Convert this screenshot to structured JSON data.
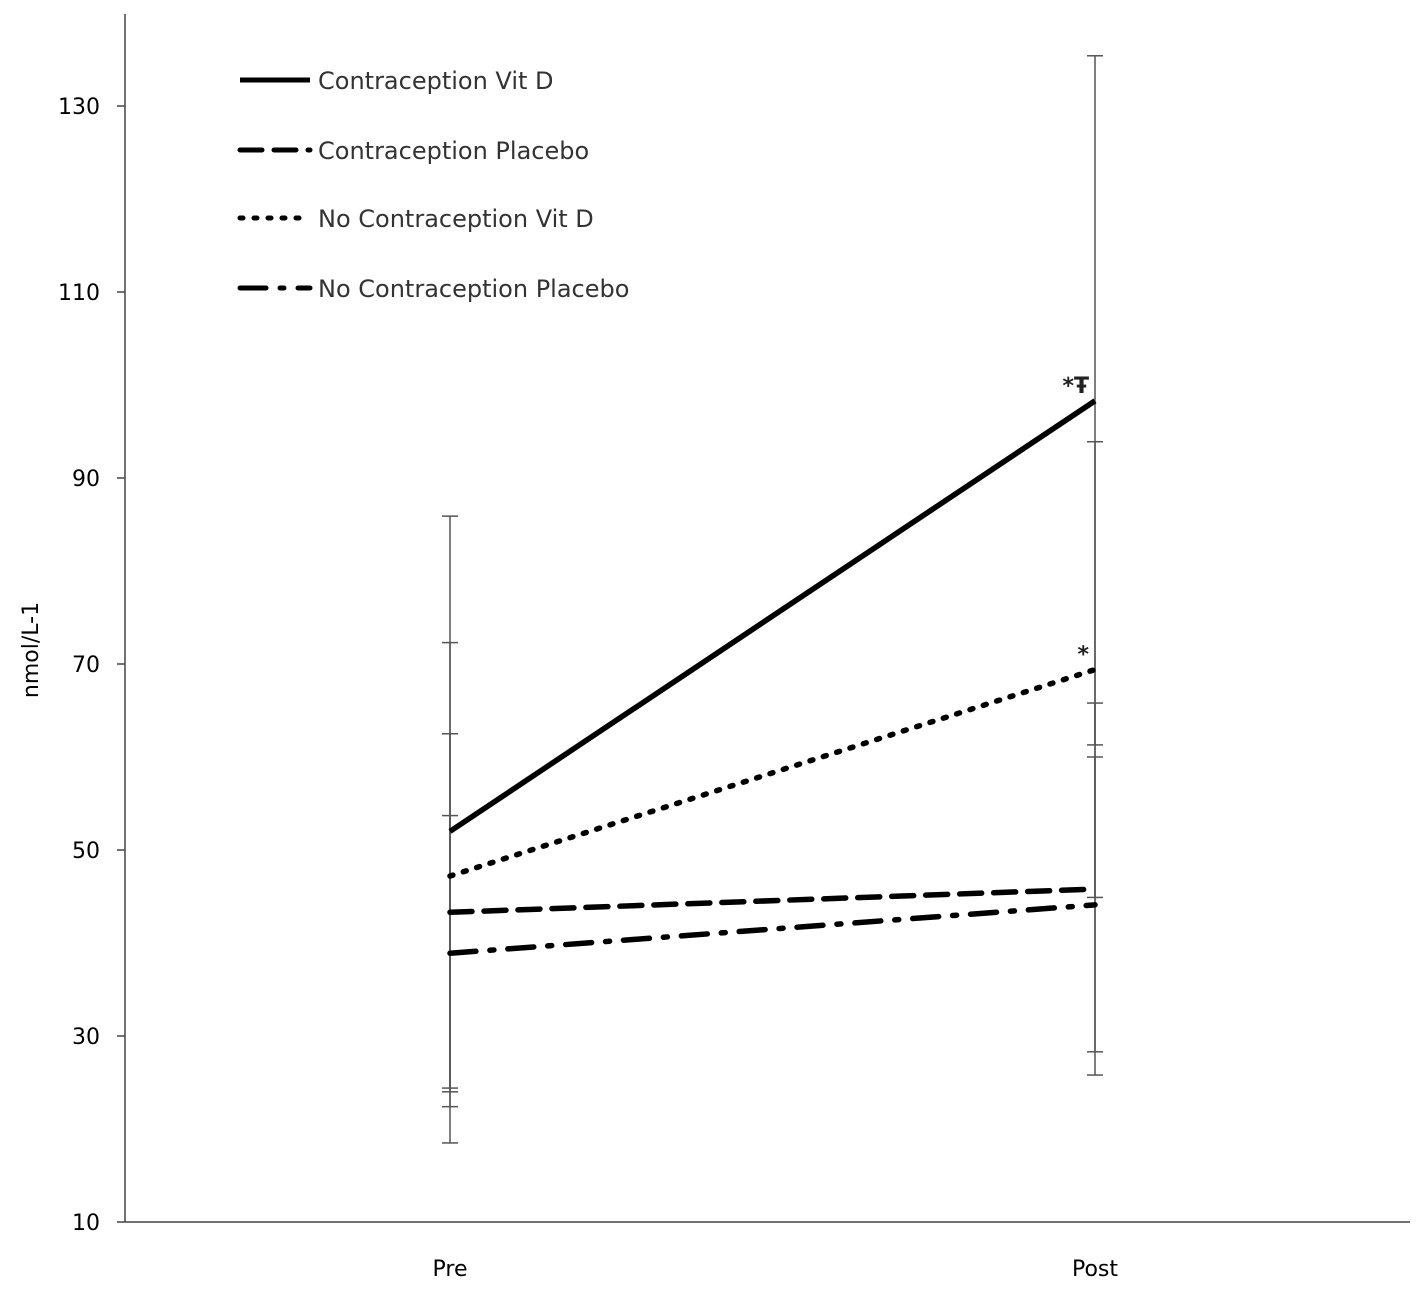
{
  "chart_data": {
    "type": "line",
    "title": "",
    "xlabel": "",
    "ylabel": "nmol/L-1",
    "ylim": [
      10,
      140
    ],
    "yticks": [
      10,
      30,
      50,
      70,
      90,
      110,
      130
    ],
    "categories": [
      "Pre",
      "Post"
    ],
    "grid": false,
    "legend_position": "top-left",
    "series": [
      {
        "name": "Contraception Vit D",
        "style": "solid",
        "values": [
          52.0,
          98.3
        ],
        "error_low": [
          18.5,
          61.3
        ],
        "error_high": [
          85.9,
          135.4
        ],
        "annotations": [
          "",
          "*Ŧ"
        ]
      },
      {
        "name": "Contraception Placebo",
        "style": "dashed",
        "values": [
          43.3,
          45.8
        ],
        "error_low": [
          24.4,
          25.8
        ],
        "error_high": [
          62.5,
          65.8
        ],
        "annotations": [
          "",
          ""
        ]
      },
      {
        "name": "No Contraception Vit D",
        "style": "dotted",
        "values": [
          47.2,
          69.4
        ],
        "error_low": [
          22.4,
          44.9
        ],
        "error_high": [
          72.3,
          93.9
        ],
        "annotations": [
          "",
          "*"
        ]
      },
      {
        "name": "No Contraception Placebo",
        "style": "dashdot",
        "values": [
          38.9,
          44.1
        ],
        "error_low": [
          24.0,
          28.3
        ],
        "error_high": [
          53.7,
          60.0
        ],
        "annotations": [
          "",
          ""
        ]
      }
    ]
  }
}
